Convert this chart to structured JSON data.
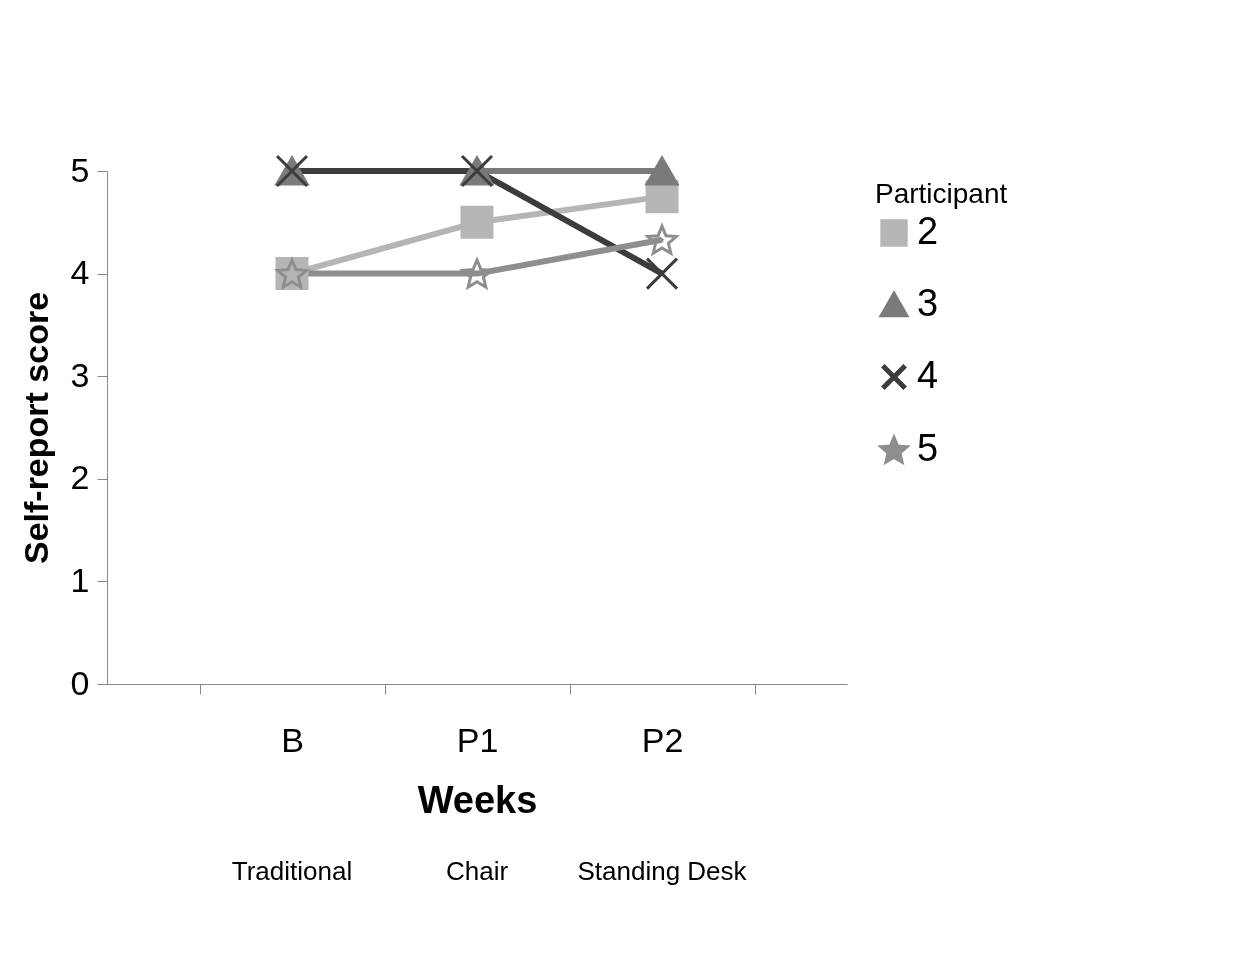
{
  "chart_data": {
    "type": "line",
    "xlabel": "Weeks",
    "ylabel": "Self-report score",
    "legend_title": "Participant",
    "categories": [
      "B",
      "P1",
      "P2"
    ],
    "series": [
      {
        "name": "2",
        "color": "#b5b5b5",
        "marker": "square",
        "values": [
          4,
          4.5,
          4.75
        ]
      },
      {
        "name": "3",
        "color": "#7a7a7a",
        "marker": "triangle",
        "values": [
          5,
          5,
          5
        ]
      },
      {
        "name": "4",
        "color": "#3c3c3c",
        "marker": "cross",
        "values": [
          5,
          5,
          4
        ]
      },
      {
        "name": "5",
        "color": "#8e8e8e",
        "marker": "star",
        "values": [
          4,
          4,
          4.33
        ]
      }
    ],
    "ylim": [
      0,
      5
    ],
    "yticks": [
      0,
      1,
      2,
      3,
      4,
      5
    ],
    "grid": false,
    "legend": "right",
    "annotations": [
      "Traditional",
      "Chair",
      "Standing Desk"
    ]
  }
}
